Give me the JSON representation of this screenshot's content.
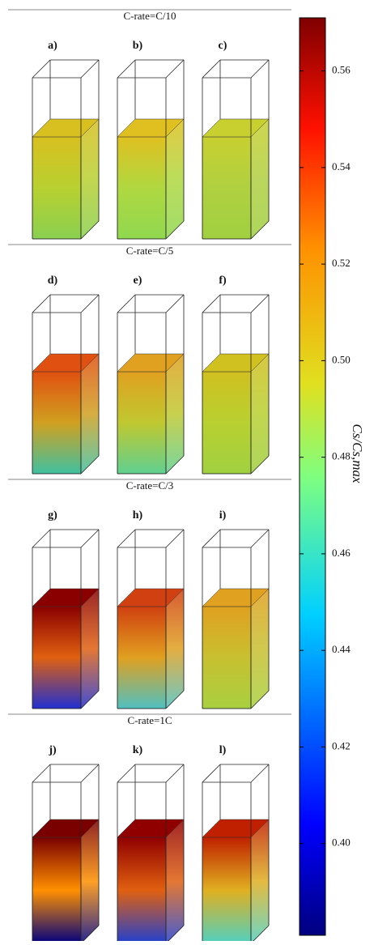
{
  "figure": {
    "rows": [
      {
        "title": "C-rate=C/10",
        "panels": [
          {
            "label": "a)"
          },
          {
            "label": "b)"
          },
          {
            "label": "c)"
          }
        ]
      },
      {
        "title": "C-rate=C/5",
        "panels": [
          {
            "label": "d)"
          },
          {
            "label": "e)"
          },
          {
            "label": "f)"
          }
        ]
      },
      {
        "title": "C-rate=C/3",
        "panels": [
          {
            "label": "g)"
          },
          {
            "label": "h)"
          },
          {
            "label": "i)"
          }
        ]
      },
      {
        "title": "C-rate=1C",
        "panels": [
          {
            "label": "j)"
          },
          {
            "label": "k)"
          },
          {
            "label": "l)"
          }
        ]
      }
    ],
    "colorbar": {
      "label": "Cs/Cs,max",
      "lim": [
        0.381,
        0.571
      ],
      "ticks": [
        {
          "value": 0.4,
          "label": "0.40"
        },
        {
          "value": 0.42,
          "label": "0.42"
        },
        {
          "value": 0.44,
          "label": "0.44"
        },
        {
          "value": 0.46,
          "label": "0.46"
        },
        {
          "value": 0.48,
          "label": "0.48"
        },
        {
          "value": 0.5,
          "label": "0.50"
        },
        {
          "value": 0.52,
          "label": "0.52"
        },
        {
          "value": 0.54,
          "label": "0.54"
        },
        {
          "value": 0.56,
          "label": "0.56"
        }
      ]
    }
  }
}
